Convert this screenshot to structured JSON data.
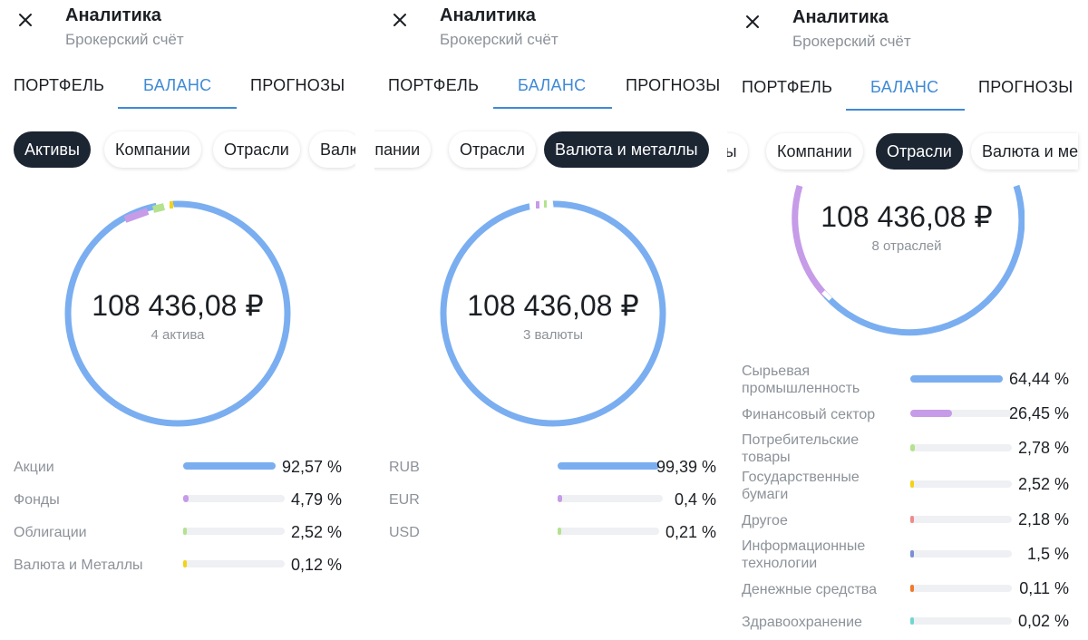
{
  "header": {
    "title": "Аналитика",
    "subtitle": "Брокерский счёт"
  },
  "tabs": [
    "ПОРТФЕЛЬ",
    "БАЛАНС",
    "ПРОГНОЗЫ"
  ],
  "active_tab": "БАЛАНС",
  "currency_icon": "close-icon",
  "colors": {
    "accent": "#3f8ad6",
    "chip_active": "#1c2532",
    "blue": "#7aaef0",
    "purple": "#c69be8",
    "green": "#b4e28f",
    "yellow": "#f3d21a",
    "red": "#f08a8a",
    "indigo": "#7b8dd6",
    "orange": "#f07a2c",
    "teal": "#6fd6cf"
  },
  "panels": [
    {
      "chips": [
        "Активы",
        "Компании",
        "Отрасли",
        "Валю"
      ],
      "active_chip": "Активы",
      "total": "108 436,08 ₽",
      "count_label": "4 актива",
      "rows": [
        {
          "label": "Акции",
          "value": "92,57 %",
          "share": 0.9257,
          "color": "#7aaef0"
        },
        {
          "label": "Фонды",
          "value": "4,79 %",
          "share": 0.0479,
          "color": "#c69be8"
        },
        {
          "label": "Облигации",
          "value": "2,52 %",
          "share": 0.0252,
          "color": "#b4e28f"
        },
        {
          "label": "Валюта и Металлы",
          "value": "0,12 %",
          "share": 0.0012,
          "color": "#f3d21a"
        }
      ]
    },
    {
      "chips": [
        "мпании",
        "Отрасли",
        "Валюта и металлы"
      ],
      "active_chip": "Валюта и металлы",
      "total": "108 436,08 ₽",
      "count_label": "3 валюты",
      "rows": [
        {
          "label": "RUB",
          "value": "99,39 %",
          "share": 0.9939,
          "color": "#7aaef0"
        },
        {
          "label": "EUR",
          "value": "0,4 %",
          "share": 0.004,
          "color": "#c69be8"
        },
        {
          "label": "USD",
          "value": "0,21 %",
          "share": 0.0021,
          "color": "#b4e28f"
        }
      ]
    },
    {
      "chips": [
        "вы",
        "Компании",
        "Отрасли",
        "Валюта и ме"
      ],
      "active_chip": "Отрасли",
      "total": "108 436,08 ₽",
      "count_label": "8 отраслей",
      "rows": [
        {
          "label": "Сырьевая промышленность",
          "value": "64,44 %",
          "share": 0.6444,
          "color": "#7aaef0"
        },
        {
          "label": "Финансовый сектор",
          "value": "26,45 %",
          "share": 0.2645,
          "color": "#c69be8"
        },
        {
          "label": "Потребительские товары",
          "value": "2,78 %",
          "share": 0.0278,
          "color": "#b4e28f"
        },
        {
          "label": "Государственные бумаги",
          "value": "2,52 %",
          "share": 0.0252,
          "color": "#f3d21a"
        },
        {
          "label": "Другое",
          "value": "2,18 %",
          "share": 0.0218,
          "color": "#f08a8a"
        },
        {
          "label": "Информационные технологии",
          "value": "1,5 %",
          "share": 0.015,
          "color": "#7b8dd6"
        },
        {
          "label": "Денежные средства",
          "value": "0,11 %",
          "share": 0.0011,
          "color": "#f07a2c"
        },
        {
          "label": "Здравоохранение",
          "value": "0,02 %",
          "share": 0.0002,
          "color": "#6fd6cf"
        }
      ]
    }
  ]
}
